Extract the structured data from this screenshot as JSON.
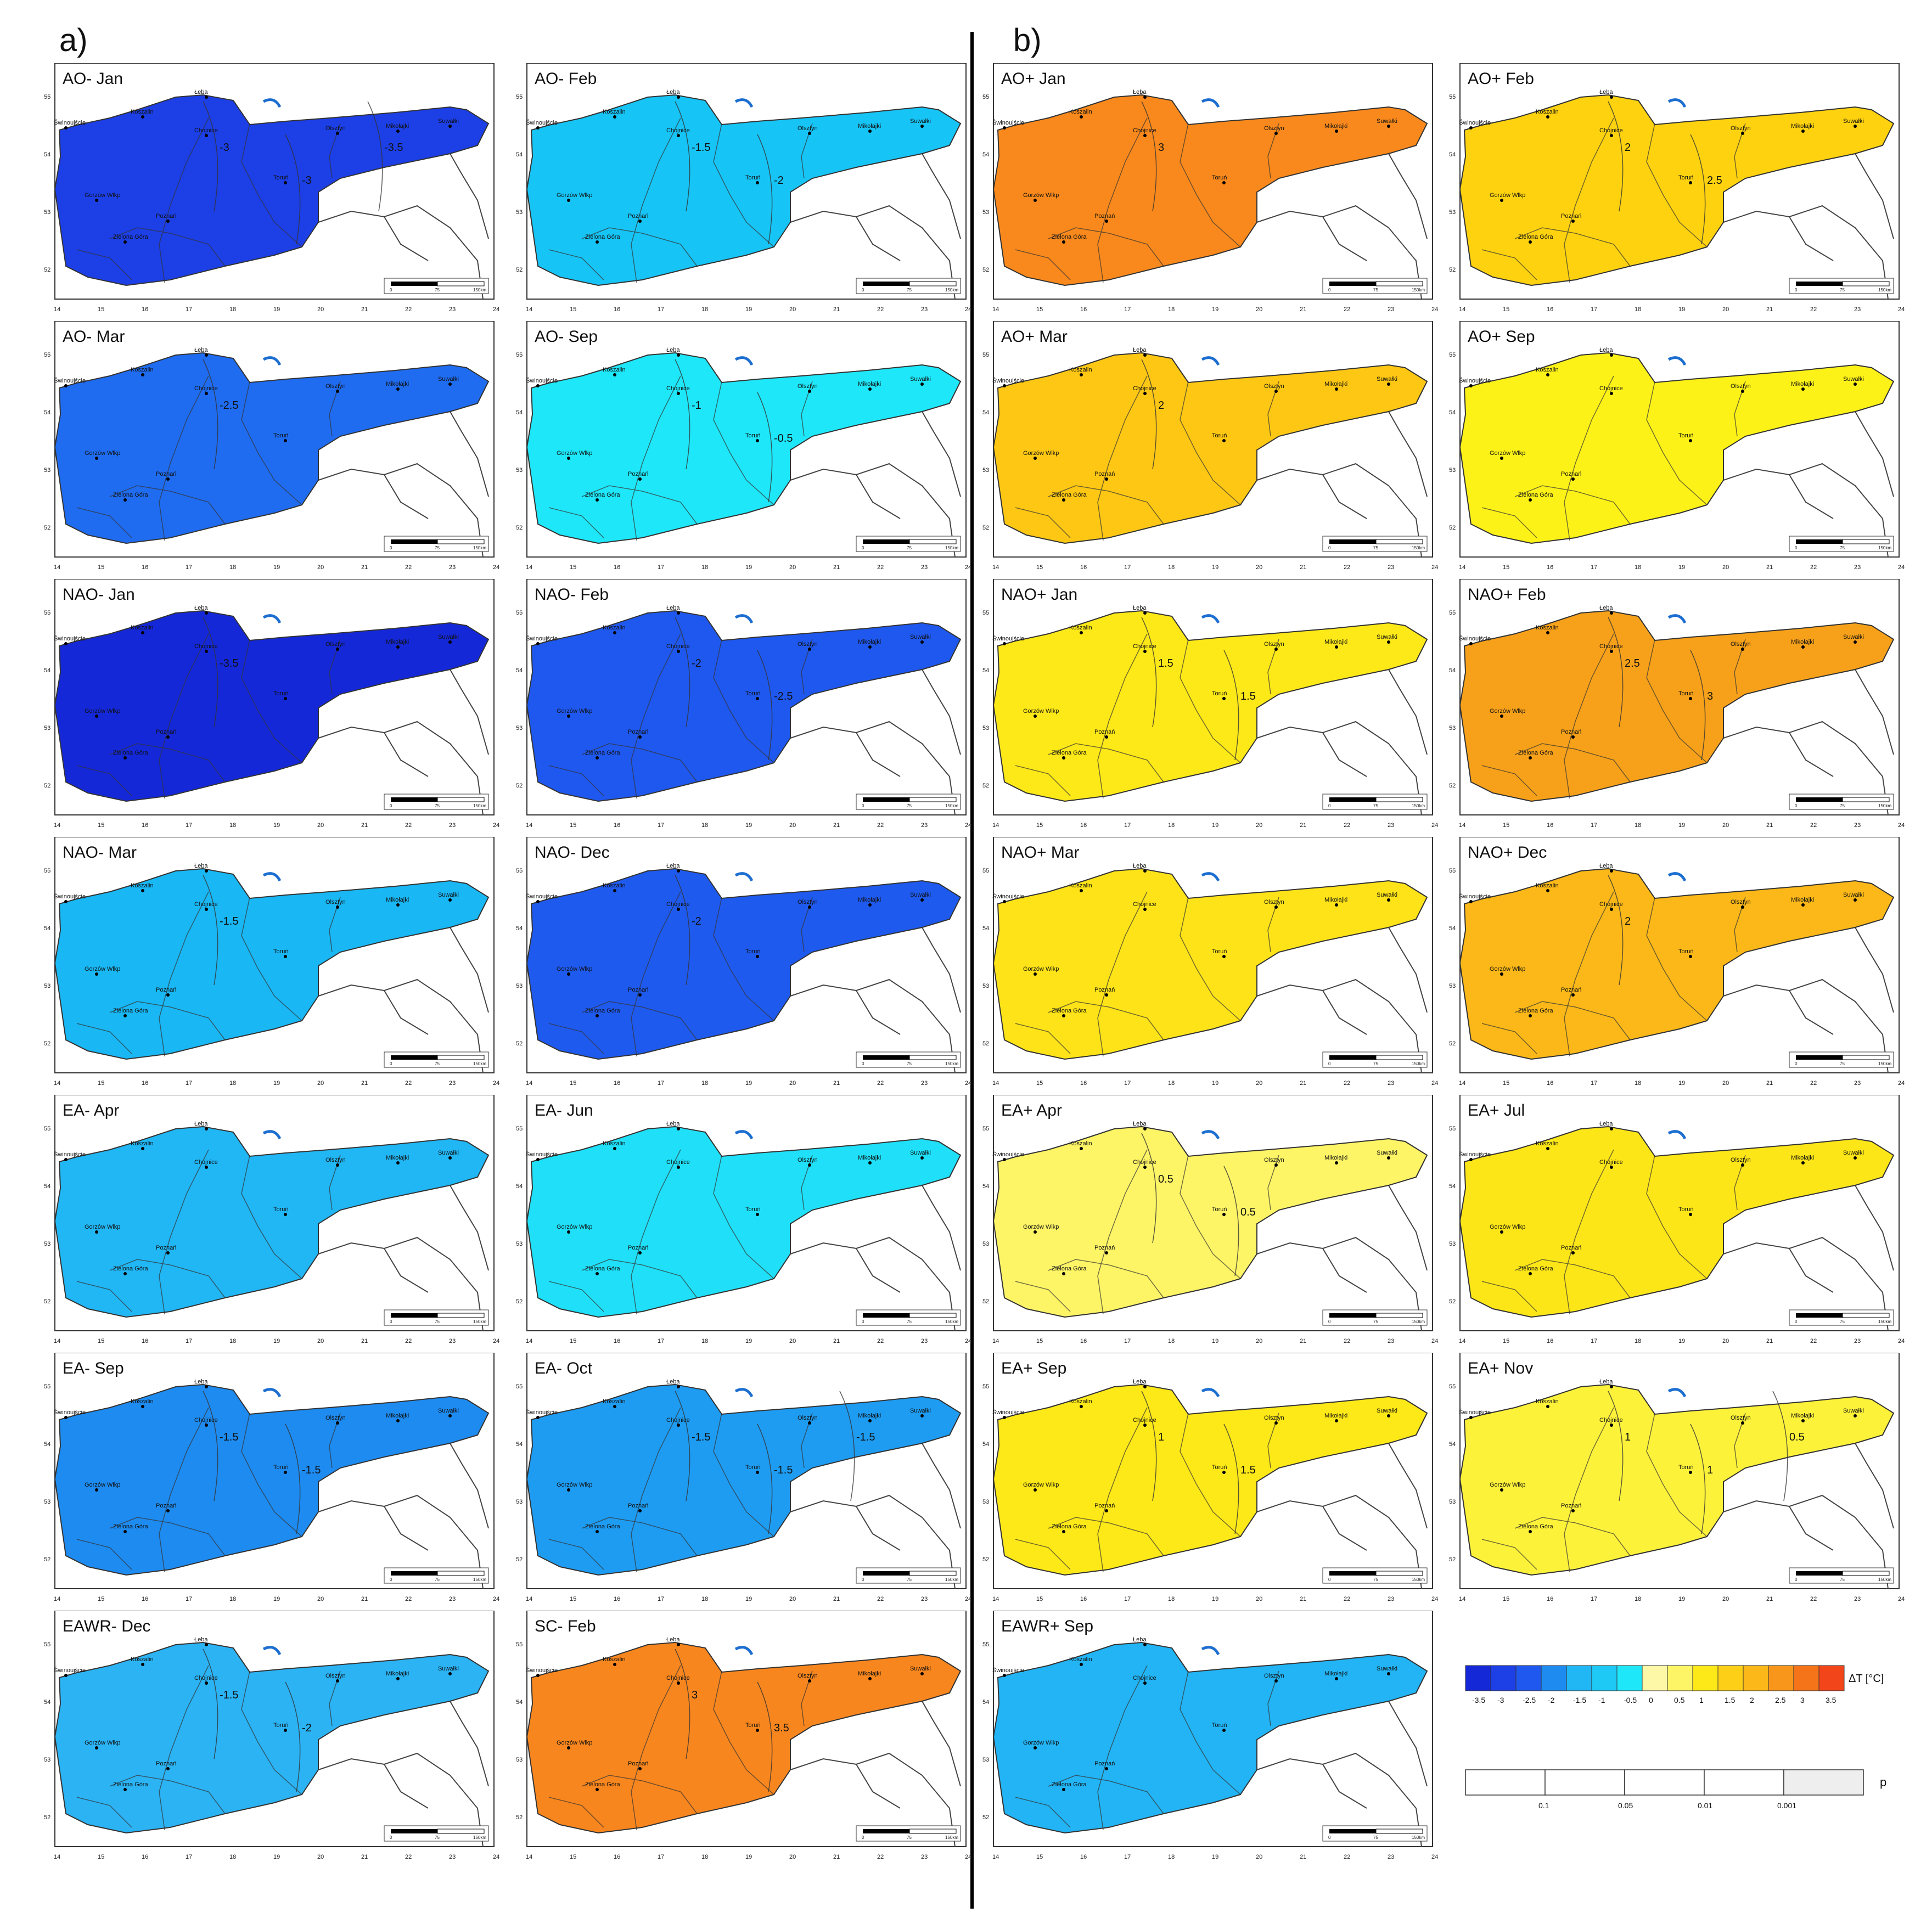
{
  "section_labels": {
    "a": "a)",
    "b": "b)"
  },
  "map_common": {
    "cities": [
      "Łeba",
      "Koszalin",
      "Świnoujście",
      "Chojnice",
      "Olsztyn",
      "Mikołajki",
      "Suwałki",
      "Toruń",
      "Gorzów Wlkp",
      "Poznań",
      "Zielona Góra"
    ],
    "lon_ticks": [
      "14",
      "15",
      "16",
      "17",
      "18",
      "19",
      "20",
      "21",
      "22",
      "23",
      "24"
    ],
    "lat_ticks": [
      "52",
      "53",
      "54",
      "55"
    ],
    "scalebar": {
      "zero": "0",
      "mid": "75",
      "end": "150km"
    }
  },
  "panels": [
    {
      "title": "AO- Jan",
      "fill": "#1c3fe6",
      "contours": [
        "-3",
        "-3",
        "-3.5"
      ]
    },
    {
      "title": "AO- Feb",
      "fill": "#17c4f6",
      "contours": [
        "-1.5",
        "-2"
      ]
    },
    {
      "title": "AO+ Jan",
      "fill": "#f9891c",
      "contours": [
        "3"
      ]
    },
    {
      "title": "AO+ Feb",
      "fill": "#fed20f",
      "contours": [
        "2",
        "2.5"
      ]
    },
    {
      "title": "AO- Mar",
      "fill": "#1f6cf0",
      "contours": [
        "-2.5"
      ]
    },
    {
      "title": "AO- Sep",
      "fill": "#1ee7f9",
      "contours": [
        "-1",
        "-0.5"
      ]
    },
    {
      "title": "AO+ Mar",
      "fill": "#fdc714",
      "contours": [
        "2"
      ]
    },
    {
      "title": "AO+ Sep",
      "fill": "#fdf218",
      "contours": []
    },
    {
      "title": "NAO- Jan",
      "fill": "#1428d8",
      "contours": [
        "-3.5"
      ]
    },
    {
      "title": "NAO- Feb",
      "fill": "#1f58ee",
      "contours": [
        "-2",
        "-2.5"
      ]
    },
    {
      "title": "NAO+ Jan",
      "fill": "#fde818",
      "contours": [
        "1.5",
        "1.5"
      ]
    },
    {
      "title": "NAO+ Feb",
      "fill": "#f7a11a",
      "contours": [
        "2.5",
        "3"
      ]
    },
    {
      "title": "NAO- Mar",
      "fill": "#19b7f4",
      "contours": [
        "-1.5"
      ]
    },
    {
      "title": "NAO- Dec",
      "fill": "#1f5aee",
      "contours": [
        "-2"
      ]
    },
    {
      "title": "NAO+ Mar",
      "fill": "#fde318",
      "contours": []
    },
    {
      "title": "NAO+ Dec",
      "fill": "#fbb818",
      "contours": [
        "2"
      ]
    },
    {
      "title": "EA- Apr",
      "fill": "#21b6f4",
      "contours": []
    },
    {
      "title": "EA- Jun",
      "fill": "#1fe0f8",
      "contours": []
    },
    {
      "title": "EA+ Apr",
      "fill": "#fdf466",
      "contours": [
        "0.5",
        "0.5"
      ]
    },
    {
      "title": "EA+ Jul",
      "fill": "#fde618",
      "contours": []
    },
    {
      "title": "EA- Sep",
      "fill": "#1e8bf0",
      "contours": [
        "-1.5",
        "-1.5"
      ]
    },
    {
      "title": "EA- Oct",
      "fill": "#1e9cf2",
      "contours": [
        "-1.5",
        "-1.5",
        "-1.5"
      ]
    },
    {
      "title": "EA+ Sep",
      "fill": "#fde818",
      "contours": [
        "1",
        "1.5"
      ]
    },
    {
      "title": "EA+ Nov",
      "fill": "#fdf23a",
      "contours": [
        "1",
        "1",
        "0.5"
      ]
    },
    {
      "title": "EAWR- Dec",
      "fill": "#2bb3f4",
      "contours": [
        "-1.5",
        "-2"
      ]
    },
    {
      "title": "SC- Feb",
      "fill": "#f8861e",
      "contours": [
        "3",
        "3.5"
      ]
    },
    {
      "title": "EAWR+ Sep",
      "fill": "#22b4f4",
      "contours": []
    }
  ],
  "legend": {
    "colors": [
      "#1428d8",
      "#1c3fe6",
      "#1f58ee",
      "#1e8bf0",
      "#21b6f4",
      "#1ec9f6",
      "#1ee7f9",
      "#fdf7a8",
      "#fdf466",
      "#fde818",
      "#fdcf17",
      "#fbb818",
      "#f8961c",
      "#f57419",
      "#f2461a"
    ],
    "tick_labels": [
      "-3.5",
      "-3",
      "-2.5",
      "-2",
      "-1.5",
      "-1",
      "-0.5",
      "0",
      "0.5",
      "1",
      "1.5",
      "2",
      "2.5",
      "3",
      "3.5"
    ],
    "unit_label": "ΔT [°C]",
    "p_ticks": [
      "0.1",
      "0.05",
      "0.01",
      "0.001"
    ],
    "p_label": "p"
  }
}
